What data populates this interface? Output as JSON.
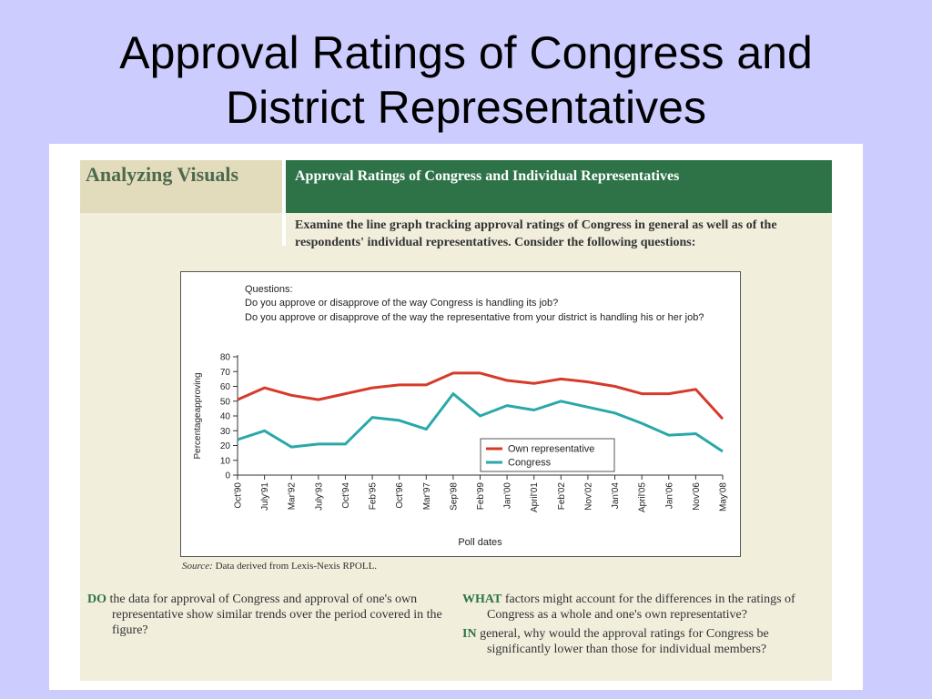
{
  "slide": {
    "title_line1": "Approval Ratings of Congress and",
    "title_line2": "District Representatives"
  },
  "panel": {
    "section_label": "Analyzing Visuals",
    "header": "Approval Ratings of Congress and Individual Representatives",
    "intro": "Examine the line graph tracking approval ratings of Congress in general as well as of the respondents' individual representatives. Consider the following questions:",
    "source_label": "Source:",
    "source_text": "Data derived from Lexis-Nexis RPOLL.",
    "questions": {
      "left": {
        "keyword": "DO",
        "text": "the data for approval of Congress and approval of one's own representative show similar trends over the period covered in the figure?"
      },
      "right1": {
        "keyword": "WHAT",
        "text": "factors might account for the differences in the ratings of Congress as a whole and one's own representative?"
      },
      "right2": {
        "keyword": "IN",
        "text": "general, why would the approval ratings for Congress be significantly lower than those for individual members?"
      }
    }
  },
  "chart_data": {
    "type": "line",
    "questions_heading": "Questions:",
    "question1": "Do you approve or disapprove of the way Congress is handling its job?",
    "question2": "Do you approve or disapprove of the way the representative from your district is handling his or her job?",
    "xlabel": "Poll dates",
    "ylabel": "Percentageapproving",
    "ylim": [
      0,
      80
    ],
    "yticks": [
      0,
      10,
      20,
      30,
      40,
      50,
      60,
      70,
      80
    ],
    "tick_labels": [
      "Oct'90",
      "July'91",
      "Mar'92",
      "July'93",
      "Oct'94",
      "Feb'95",
      "Oct'96",
      "Mar'97",
      "Sep'98",
      "Feb'99",
      "Jan'00",
      "April'01",
      "Feb'02",
      "Nov'02",
      "Jan'04",
      "April'05",
      "Jan'06",
      "Nov'06",
      "May'08"
    ],
    "series": [
      {
        "name": "Own representative",
        "color": "#d63a2a",
        "points": [
          [
            "Oct'90",
            51
          ],
          [
            "July'91",
            59
          ],
          [
            "Mar'92",
            54
          ],
          [
            "July'93",
            51
          ],
          [
            "Oct'94",
            55
          ],
          [
            "Feb'95",
            59
          ],
          [
            "Oct'96",
            61
          ],
          [
            "Mar'97",
            61
          ],
          [
            "Sep'98",
            69
          ],
          [
            "Feb'99",
            69
          ],
          [
            "Jan'00",
            64
          ],
          [
            "April'01",
            62
          ],
          [
            "Feb'02",
            65
          ],
          [
            "Nov'02",
            63
          ],
          [
            "Jan'04",
            60
          ],
          [
            "April'05",
            55
          ],
          [
            "Jan'06",
            55
          ],
          [
            "Nov'06",
            58
          ],
          [
            "May'08",
            38
          ]
        ]
      },
      {
        "name": "Congress",
        "color": "#2aa8a8",
        "points": [
          [
            "Oct'90",
            24
          ],
          [
            "July'91",
            30
          ],
          [
            "Mar'92",
            19
          ],
          [
            "July'93",
            21
          ],
          [
            "Oct'94",
            21
          ],
          [
            "Feb'95",
            39
          ],
          [
            "Oct'96",
            37
          ],
          [
            "Mar'97",
            31
          ],
          [
            "Sep'98",
            55
          ],
          [
            "Feb'99",
            40
          ],
          [
            "Jan'00",
            47
          ],
          [
            "April'01",
            44
          ],
          [
            "Feb'02",
            50
          ],
          [
            "Nov'02",
            46
          ],
          [
            "Jan'04",
            42
          ],
          [
            "April'05",
            35
          ],
          [
            "Jan'06",
            27
          ],
          [
            "Nov'06",
            28
          ],
          [
            "May'08",
            16
          ]
        ]
      }
    ]
  }
}
